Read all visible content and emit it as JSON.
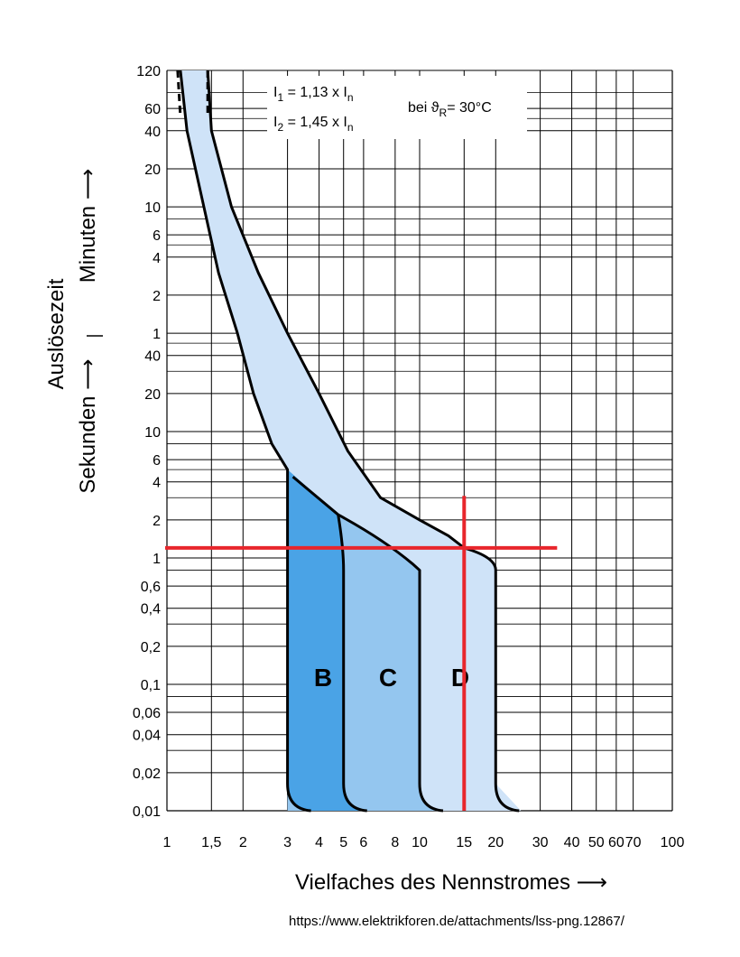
{
  "chart_data": {
    "type": "area",
    "xlabel": "Vielfaches des Nennstromes ⟶",
    "ylabel_main": "Auslösezeit",
    "ylabel_seconds": "Sekunden ⟶",
    "ylabel_minutes": "Minuten ⟶",
    "x_scale": "log",
    "x_range": [
      1,
      100
    ],
    "x_ticks": [
      {
        "v": 1,
        "label": "1"
      },
      {
        "v": 1.5,
        "label": "1,5"
      },
      {
        "v": 2,
        "label": "2"
      },
      {
        "v": 3,
        "label": "3"
      },
      {
        "v": 4,
        "label": "4"
      },
      {
        "v": 5,
        "label": "5"
      },
      {
        "v": 6,
        "label": "6"
      },
      {
        "v": 8,
        "label": "8"
      },
      {
        "v": 10,
        "label": "10"
      },
      {
        "v": 15,
        "label": "15"
      },
      {
        "v": 20,
        "label": "20"
      },
      {
        "v": 30,
        "label": "30"
      },
      {
        "v": 40,
        "label": "40"
      },
      {
        "v": 50,
        "label": "50"
      },
      {
        "v": 60,
        "label": "60"
      },
      {
        "v": 70,
        "label": "70"
      },
      {
        "v": 100,
        "label": "100"
      }
    ],
    "y_scale": "log",
    "y_unit": "seconds",
    "y_range_seconds": [
      0.01,
      7200
    ],
    "y_ticks": [
      {
        "sec": 7200,
        "label": "120"
      },
      {
        "sec": 3600,
        "label": "60"
      },
      {
        "sec": 2400,
        "label": "40"
      },
      {
        "sec": 1200,
        "label": "20"
      },
      {
        "sec": 600,
        "label": "10"
      },
      {
        "sec": 360,
        "label": "6"
      },
      {
        "sec": 240,
        "label": "4"
      },
      {
        "sec": 120,
        "label": "2"
      },
      {
        "sec": 60,
        "label": "1"
      },
      {
        "sec": 40,
        "label": "40"
      },
      {
        "sec": 20,
        "label": "20"
      },
      {
        "sec": 10,
        "label": "10"
      },
      {
        "sec": 6,
        "label": "6"
      },
      {
        "sec": 4,
        "label": "4"
      },
      {
        "sec": 2,
        "label": "2"
      },
      {
        "sec": 1,
        "label": "1"
      },
      {
        "sec": 0.6,
        "label": "0,6"
      },
      {
        "sec": 0.4,
        "label": "0,4"
      },
      {
        "sec": 0.2,
        "label": "0,2"
      },
      {
        "sec": 0.1,
        "label": "0,1"
      },
      {
        "sec": 0.06,
        "label": "0,06"
      },
      {
        "sec": 0.04,
        "label": "0,04"
      },
      {
        "sec": 0.02,
        "label": "0,02"
      },
      {
        "sec": 0.01,
        "label": "0,01"
      }
    ],
    "grid": true,
    "annotation": {
      "i1_label": "I",
      "i1_sub": "1",
      "i1_value": " = 1,13 x I",
      "i1_unit_sub": "n",
      "i2_label": "I",
      "i2_sub": "2",
      "i2_value": " = 1,45 x I",
      "i2_unit_sub": "n",
      "temp_prefix": "bei ϑ",
      "temp_sub": "R",
      "temp_value": "= 30°C"
    },
    "series": [
      {
        "name": "B",
        "x_instantaneous": [
          3,
          5
        ],
        "color": "#4aa3e6"
      },
      {
        "name": "C",
        "x_instantaneous": [
          5,
          10
        ],
        "color": "#94c6ef"
      },
      {
        "name": "D",
        "x_instantaneous": [
          10,
          20
        ],
        "color": "#cfe3f8"
      }
    ],
    "thermal_band": {
      "color": "#cfe3f8",
      "left_boundary": [
        {
          "x": 1.13,
          "t": 7200
        },
        {
          "x": 1.2,
          "t": 2400
        },
        {
          "x": 1.4,
          "t": 600
        },
        {
          "x": 1.6,
          "t": 180
        },
        {
          "x": 1.9,
          "t": 60
        },
        {
          "x": 2.2,
          "t": 20
        },
        {
          "x": 2.6,
          "t": 8
        },
        {
          "x": 3,
          "t": 5
        }
      ],
      "right_boundary": [
        {
          "x": 1.45,
          "t": 7200
        },
        {
          "x": 1.5,
          "t": 2400
        },
        {
          "x": 1.8,
          "t": 600
        },
        {
          "x": 2.3,
          "t": 180
        },
        {
          "x": 3,
          "t": 60
        },
        {
          "x": 4,
          "t": 20
        },
        {
          "x": 5.2,
          "t": 7
        },
        {
          "x": 7,
          "t": 3
        },
        {
          "x": 10,
          "t": 2
        },
        {
          "x": 13,
          "t": 1.5
        },
        {
          "x": 15,
          "t": 1.2
        }
      ]
    },
    "markers": {
      "color": "#e8262c",
      "horizontal_t": 1.2,
      "horizontal_x_range": [
        1,
        35
      ],
      "vertical_x": 15,
      "vertical_t_range": [
        0.01,
        3
      ]
    }
  },
  "source_url": "https://www.elektrikforen.de/attachments/lss-png.12867/"
}
